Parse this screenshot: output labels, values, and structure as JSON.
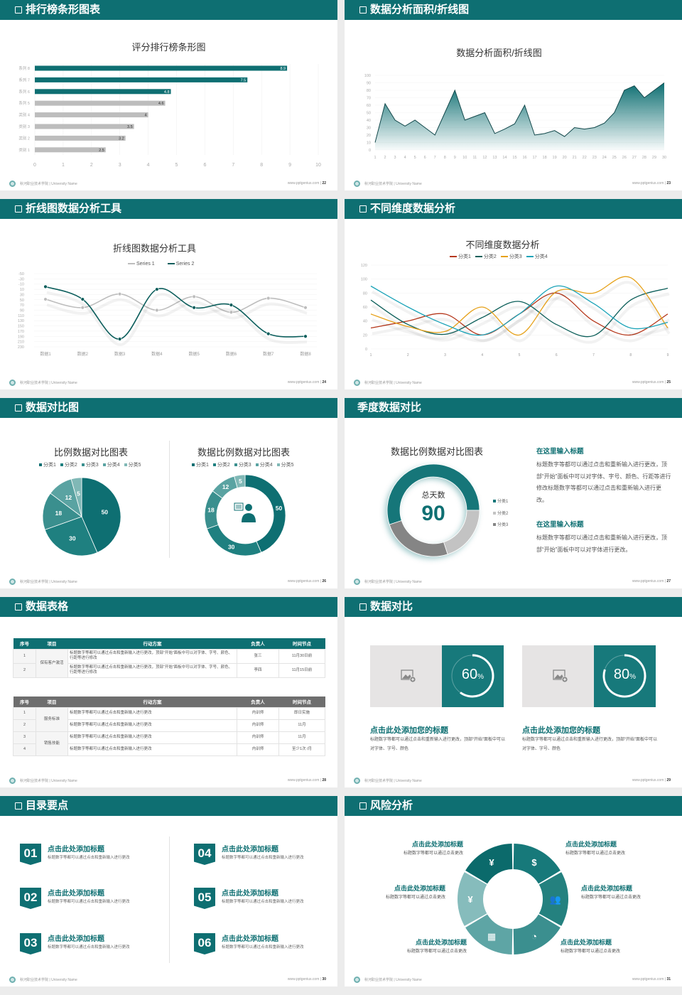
{
  "theme": {
    "primary": "#0e6f72",
    "light_gray": "#bdbdbd",
    "dark_gray": "#7d7d7d",
    "background": "#ececec"
  },
  "footer": {
    "school": "秋河职业技术学院 | University Name",
    "site": "www.pptgenius.com"
  },
  "slides": {
    "bar": {
      "header": "排行榜条形图表",
      "page": "22"
    },
    "area": {
      "header": "数据分析面积/折线图",
      "page": "23"
    },
    "line": {
      "header": "折线图数据分析工具",
      "page": "24"
    },
    "multi": {
      "header": "不同维度数据分析",
      "page": "25"
    },
    "pies": {
      "header": "数据对比图",
      "page": "26"
    },
    "quarter": {
      "header": "季度数据对比",
      "page": "27",
      "blocks": [
        {
          "title": "在这里输入标题",
          "text": "标题数字等都可以通过点击和重新输入进行更改，顶部“开始”面板中可以对字体、字号、颜色、行距等进行修改标题数字等都可以通过点击和重新输入进行更改。"
        },
        {
          "title": "在这里输入标题",
          "text": "标题数字等都可以通过点击和重新输入进行更改，顶部“开始”面板中可以对字体进行更改。"
        }
      ]
    },
    "table": {
      "header": "数据表格",
      "page": "28",
      "columns": [
        "序号",
        "项目",
        "行动方案",
        "负责人",
        "时间节点"
      ],
      "table1": {
        "group": "保有客户激活",
        "rows": [
          {
            "no": "1",
            "plan": "标题数字等都可以通过点击和重新输入进行更改，顶部“开始”面板中可以对字体、字号、颜色、行距等进行修改",
            "owner": "张三",
            "time": "11月30日前"
          },
          {
            "no": "2",
            "plan": "标题数字等都可以通过点击和重新输入进行更改，顶部“开始”面板中可以对字体、字号、颜色、行距等进行修改",
            "owner": "李四",
            "time": "11月15日前"
          }
        ]
      },
      "table2": {
        "groups": [
          "服务标准",
          "销售技能"
        ],
        "rows": [
          {
            "no": "1",
            "plan": "标题数字等都可以通过点击和重新输入进行更改",
            "owner": "内训师",
            "time": "即日实施"
          },
          {
            "no": "2",
            "plan": "标题数字等都可以通过点击和重新输入进行更改",
            "owner": "内训师",
            "time": "11月"
          },
          {
            "no": "3",
            "plan": "标题数字等都可以通过点击和重新输入进行更改",
            "owner": "内训师",
            "time": "11月"
          },
          {
            "no": "4",
            "plan": "标题数字等都可以通过点击和重新输入进行更改",
            "owner": "内训师",
            "time": "至少1次 /月"
          }
        ]
      }
    },
    "compare": {
      "header": "数据对比",
      "page": "29",
      "cards": [
        {
          "percent": 60,
          "value": "60",
          "unit": "%",
          "title": "点击此处添加您的标题",
          "text": "标题数字等都可以通过点击和重新输入进行更改，顶部“开始”面板中可以对字体、字号、颜色",
          "icon": "image-add-icon"
        },
        {
          "percent": 80,
          "value": "80",
          "unit": "%",
          "title": "点击此处添加您的标题",
          "text": "标题数字等都可以通过点击和重新输入进行更改，顶部“开始”面板中可以对字体、字号、颜色",
          "icon": "image-add-icon"
        }
      ]
    },
    "toc": {
      "header": "目录要点",
      "page": "30",
      "items": [
        {
          "num": "01",
          "title": "点击此处添加标题",
          "text": "标题数字等都可以通过点击和重新输入进行更改"
        },
        {
          "num": "02",
          "title": "点击此处添加标题",
          "text": "标题数字等都可以通过点击和重新输入进行更改"
        },
        {
          "num": "03",
          "title": "点击此处添加标题",
          "text": "标题数字等都可以通过点击和重新输入进行更改"
        },
        {
          "num": "04",
          "title": "点击此处添加标题",
          "text": "标题数字等都可以通过点击和重新输入进行更改"
        },
        {
          "num": "05",
          "title": "点击此处添加标题",
          "text": "标题数字等都可以通过点击和重新输入进行更改"
        },
        {
          "num": "06",
          "title": "点击此处添加标题",
          "text": "标题数字等都可以通过点击和重新输入进行更改"
        }
      ]
    },
    "risk": {
      "header": "风险分析",
      "page": "31",
      "items": [
        {
          "title": "点击此处添加标题",
          "text": "标题数字等都可以通过点击更改",
          "icon": "money-bag-icon"
        },
        {
          "title": "点击此处添加标题",
          "text": "标题数字等都可以通过点击更改",
          "icon": "coins-icon"
        },
        {
          "title": "点击此处添加标题",
          "text": "标题数字等都可以通过点击更改",
          "icon": "users-icon"
        },
        {
          "title": "点击此处添加标题",
          "text": "标题数字等都可以通过点击更改",
          "icon": "pie-chart-icon"
        },
        {
          "title": "点击此处添加标题",
          "text": "标题数字等都可以通过点击更改",
          "icon": "building-icon"
        },
        {
          "title": "点击此处添加标题",
          "text": "标题数字等都可以通过点击更改",
          "icon": "yen-hand-icon"
        }
      ]
    }
  },
  "chart_data": [
    {
      "type": "bar",
      "orientation": "horizontal",
      "title": "评分排行榜条形图",
      "categories": [
        "类别 1",
        "类别 2",
        "类别 3",
        "类别 4",
        "系列 5",
        "系列 6",
        "系列 7",
        "系列 8"
      ],
      "values": [
        2.5,
        3.2,
        3.5,
        4,
        4.6,
        4.8,
        7.5,
        8.9
      ],
      "xlim": [
        0,
        10
      ],
      "xticks": [
        0,
        1,
        2,
        3,
        4,
        5,
        6,
        7,
        8,
        9,
        10
      ],
      "highlight_top": 3,
      "highlight_color": "#0e6f72",
      "base_color": "#bdbdbd",
      "grid": true
    },
    {
      "type": "area",
      "title": "数据分析面积/折线图",
      "x": [
        1,
        2,
        3,
        4,
        5,
        6,
        7,
        8,
        9,
        10,
        11,
        12,
        13,
        14,
        15,
        16,
        17,
        18,
        19,
        20,
        21,
        22,
        23,
        24,
        25,
        26,
        27,
        28,
        29,
        30
      ],
      "values": [
        10,
        62,
        40,
        32,
        40,
        30,
        20,
        50,
        80,
        40,
        45,
        50,
        22,
        28,
        35,
        60,
        20,
        22,
        26,
        18,
        30,
        28,
        30,
        36,
        50,
        80,
        86,
        70,
        80,
        90
      ],
      "ylim": [
        0,
        100
      ],
      "yticks": [
        0,
        10,
        20,
        30,
        40,
        50,
        60,
        70,
        80,
        90,
        100
      ],
      "color": "#0e6f72"
    },
    {
      "type": "line",
      "title": "折线图数据分析工具",
      "smooth": true,
      "categories": [
        "数据1",
        "数据2",
        "数据3",
        "数据4",
        "数据5",
        "数据6",
        "数据7",
        "数据8"
      ],
      "series": [
        {
          "name": "Series 1",
          "values": [
            48,
            80,
            28,
            90,
            38,
            98,
            44,
            80
          ],
          "color": "#bdbdbd"
        },
        {
          "name": "Series 2",
          "values": [
            0,
            48,
            200,
            10,
            80,
            70,
            180,
            190
          ],
          "color": "#0c5e5c"
        }
      ],
      "ylim": [
        -50,
        230
      ],
      "yticks": [
        -50,
        -30,
        -10,
        10,
        30,
        50,
        70,
        90,
        110,
        130,
        150,
        170,
        190,
        210,
        230
      ],
      "legend": "top"
    },
    {
      "type": "line",
      "title": "不同维度数据分析",
      "smooth": true,
      "x": [
        1,
        2,
        3,
        4,
        5,
        6,
        7,
        8,
        9
      ],
      "series": [
        {
          "name": "分类1",
          "values": [
            30,
            40,
            50,
            20,
            50,
            80,
            40,
            20,
            50
          ],
          "color": "#b5381c"
        },
        {
          "name": "分类2",
          "values": [
            70,
            35,
            21,
            45,
            68,
            35,
            19,
            70,
            87
          ],
          "color": "#0d5f5a"
        },
        {
          "name": "分类3",
          "values": [
            50,
            32,
            25,
            60,
            20,
            82,
            80,
            102,
            30
          ],
          "color": "#e6a11a"
        },
        {
          "name": "分类4",
          "values": [
            90,
            60,
            35,
            20,
            50,
            90,
            65,
            30,
            38
          ],
          "color": "#1ba3b8"
        }
      ],
      "ylim": [
        0,
        120
      ],
      "yticks": [
        0,
        20,
        40,
        60,
        80,
        100,
        120
      ],
      "legend": "top"
    },
    {
      "type": "pie",
      "title": "比例数据对比图表",
      "categories": [
        "分类1",
        "分类2",
        "分类3",
        "分类4",
        "分类5"
      ],
      "values": [
        50,
        30,
        18,
        12,
        5
      ],
      "colors": [
        "#0e6f72",
        "#1f8080",
        "#3a8f8e",
        "#5aa3a2",
        "#80b8b6"
      ],
      "legend": "top"
    },
    {
      "type": "donut",
      "title": "数据比例数据对比图表",
      "categories": [
        "分类1",
        "分类2",
        "分类3",
        "分类4",
        "分类5"
      ],
      "values": [
        50,
        30,
        18,
        12,
        5
      ],
      "colors": [
        "#0e6f72",
        "#1f8080",
        "#3a8f8e",
        "#5aa3a2",
        "#80b8b6"
      ],
      "legend": "top",
      "center_icon": "support-agent-icon"
    },
    {
      "type": "donut",
      "title": "数据比例数据对比图表",
      "categories": [
        "分类1",
        "分类2",
        "分类3"
      ],
      "values": [
        55,
        20,
        25
      ],
      "colors": [
        "#137679",
        "#c3c3c3",
        "#858585"
      ],
      "legend": "right",
      "center_label": "总天数",
      "center_value": "90"
    }
  ]
}
